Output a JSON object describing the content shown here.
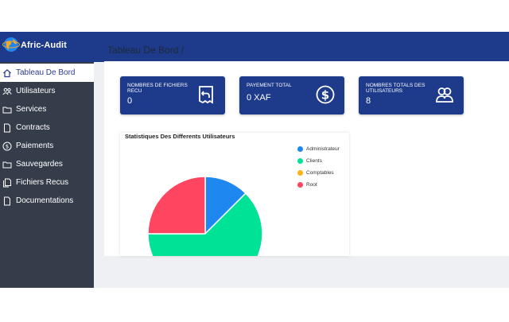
{
  "brand": {
    "name": "Afric-Audit"
  },
  "sidebar": {
    "items": [
      {
        "label": "Tableau De Bord",
        "icon": "home-icon",
        "active": true
      },
      {
        "label": "Utilisateurs",
        "icon": "users-icon",
        "active": false
      },
      {
        "label": "Services",
        "icon": "folder-icon",
        "active": false
      },
      {
        "label": "Contracts",
        "icon": "file-icon",
        "active": false
      },
      {
        "label": "Paiements",
        "icon": "dollar-icon",
        "active": false
      },
      {
        "label": "Sauvegardes",
        "icon": "folder-icon",
        "active": false
      },
      {
        "label": "Fichiers Recus",
        "icon": "files-icon",
        "active": false
      },
      {
        "label": "Documentations",
        "icon": "file-icon",
        "active": false
      }
    ]
  },
  "page": {
    "title": "Tableau De Bord /"
  },
  "cards": [
    {
      "label": "NOMBRES DE FICHIERS RECU",
      "value": "0",
      "icon": "receipt-return-icon"
    },
    {
      "label": "PAYEMENT TOTAL",
      "value": "0 XAF",
      "icon": "dollar-circle-icon"
    },
    {
      "label": "NOMBRES TOTALS DES UTILISATEURS",
      "value": "8",
      "icon": "users-icon"
    }
  ],
  "colors": {
    "primary": "#1e3a8a",
    "sidebar": "#353d4a"
  },
  "chart_data": {
    "type": "pie",
    "title": "Statistiques Des Differents Utilisateurs",
    "legend_position": "right",
    "series": [
      {
        "name": "Administrateur",
        "value": 1,
        "color": "#1e88f0"
      },
      {
        "name": "Clients",
        "value": 5,
        "color": "#00e396"
      },
      {
        "name": "Comptables",
        "value": 0,
        "color": "#feb019"
      },
      {
        "name": "Root",
        "value": 2,
        "color": "#ff4560"
      }
    ]
  }
}
